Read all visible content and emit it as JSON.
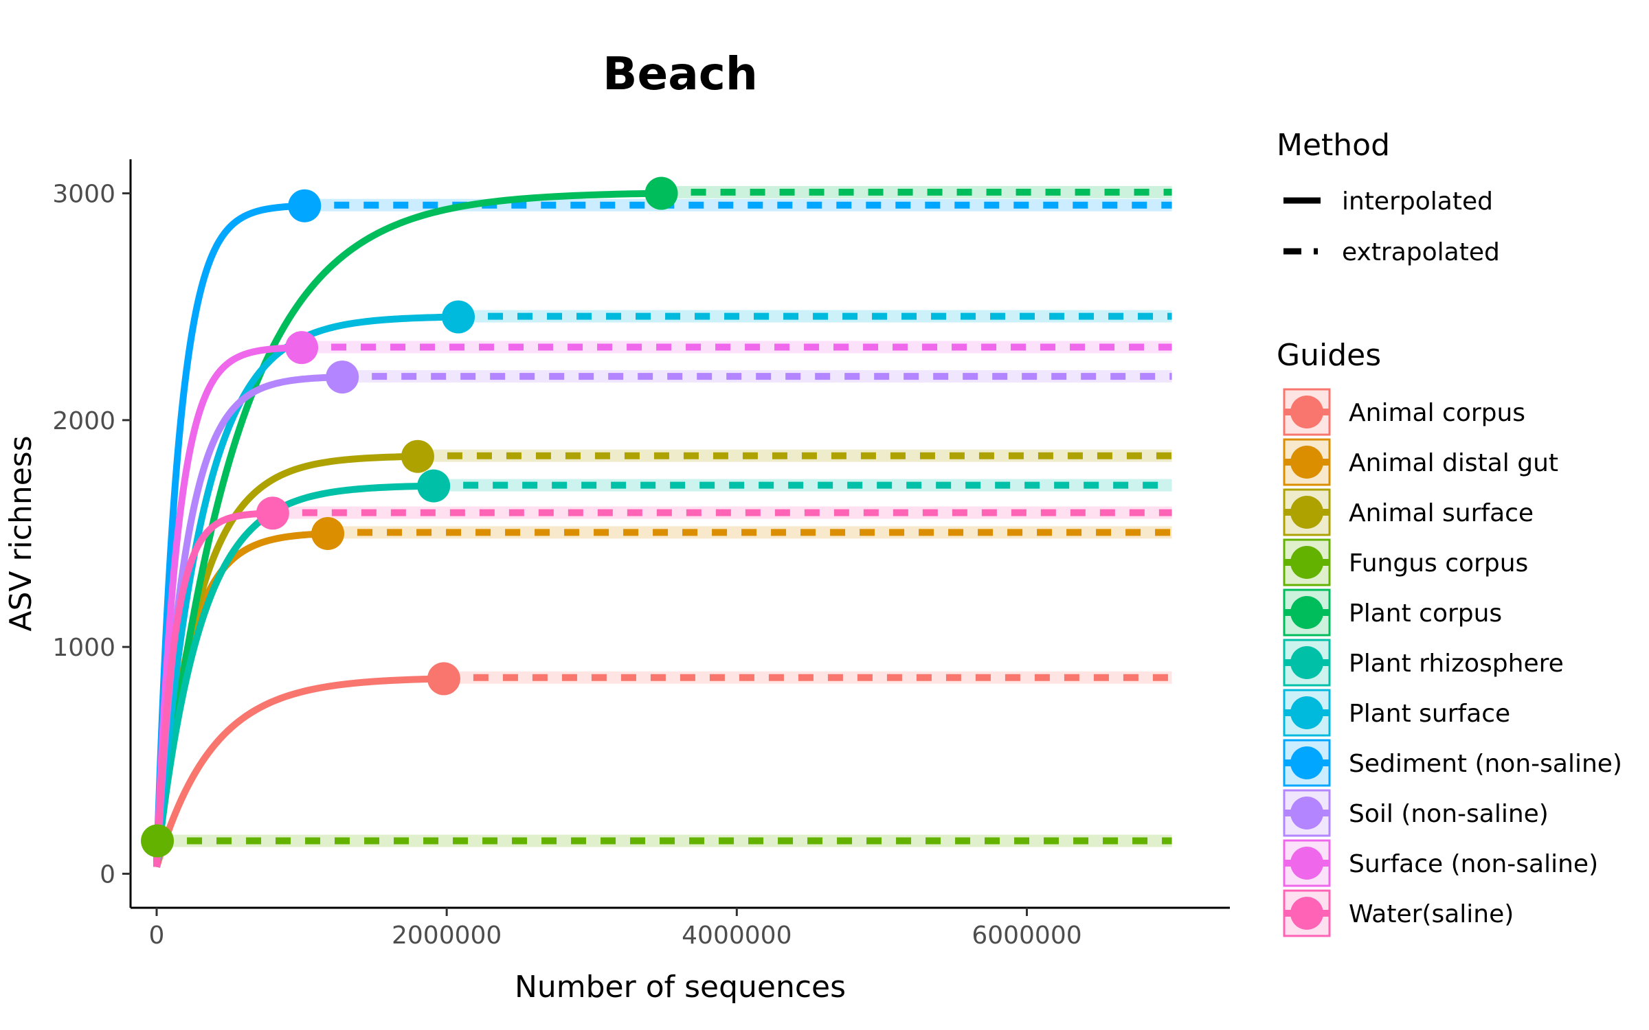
{
  "chart_data": {
    "type": "line",
    "title": "Beach",
    "xlabel": "Number of sequences",
    "ylabel": "ASV richness",
    "xlim": [
      -180000,
      7400000
    ],
    "ylim": [
      -150,
      3150
    ],
    "x_ticks": [
      0,
      2000000,
      4000000,
      6000000
    ],
    "x_tick_labels": [
      "0",
      "2000000",
      "4000000",
      "6000000"
    ],
    "y_ticks": [
      0,
      1000,
      2000,
      3000
    ],
    "y_tick_labels": [
      "0",
      "1000",
      "2000",
      "3000"
    ],
    "x_max_extrapolated": 7000000,
    "grid": false,
    "legend_placement": "right",
    "legend_method": {
      "title": "Method",
      "entries": [
        "interpolated",
        "extrapolated"
      ]
    },
    "legend_guides_title": "Guides",
    "series": [
      {
        "name": "Animal corpus",
        "color": "#F8766D",
        "observed_x": 1980000,
        "observed_y": 860,
        "asymptote": 865,
        "start_y": 30
      },
      {
        "name": "Animal distal gut",
        "color": "#DB8E00",
        "observed_x": 1180000,
        "observed_y": 1500,
        "asymptote": 1505,
        "start_y": 30
      },
      {
        "name": "Animal surface",
        "color": "#AEA200",
        "observed_x": 1800000,
        "observed_y": 1840,
        "asymptote": 1843,
        "start_y": 30
      },
      {
        "name": "Fungus corpus",
        "color": "#64B200",
        "observed_x": 5000,
        "observed_y": 145,
        "asymptote": 145,
        "start_y": 30
      },
      {
        "name": "Plant corpus",
        "color": "#00BD5C",
        "observed_x": 3480000,
        "observed_y": 3000,
        "asymptote": 3005,
        "start_y": 30
      },
      {
        "name": "Plant rhizosphere",
        "color": "#00C1A7",
        "observed_x": 1910000,
        "observed_y": 1710,
        "asymptote": 1713,
        "start_y": 30
      },
      {
        "name": "Plant surface",
        "color": "#00BADE",
        "observed_x": 2080000,
        "observed_y": 2455,
        "asymptote": 2458,
        "start_y": 30
      },
      {
        "name": "Sediment (non-saline)",
        "color": "#00A6FF",
        "observed_x": 1020000,
        "observed_y": 2945,
        "asymptote": 2948,
        "start_y": 30
      },
      {
        "name": "Soil (non-saline)",
        "color": "#B385FF",
        "observed_x": 1280000,
        "observed_y": 2190,
        "asymptote": 2193,
        "start_y": 30
      },
      {
        "name": "Surface (non-saline)",
        "color": "#EF67EB",
        "observed_x": 1000000,
        "observed_y": 2320,
        "asymptote": 2322,
        "start_y": 30
      },
      {
        "name": "Water(saline)",
        "color": "#FF63B6",
        "observed_x": 800000,
        "observed_y": 1590,
        "asymptote": 1592,
        "start_y": 30
      }
    ]
  }
}
